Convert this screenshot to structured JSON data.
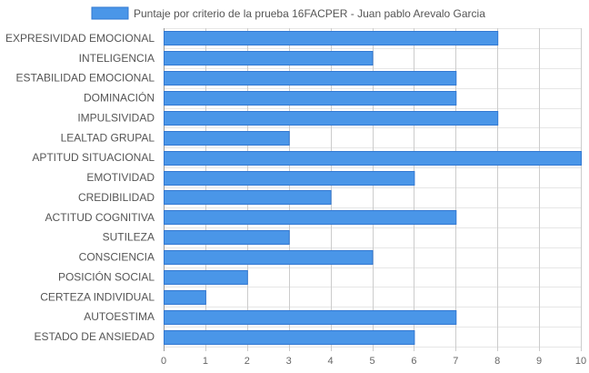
{
  "chart_data": {
    "type": "bar",
    "orientation": "horizontal",
    "title": "",
    "xlabel": "",
    "ylabel": "",
    "xlim": [
      0,
      10
    ],
    "grid": true,
    "legend_position": "top",
    "categories": [
      "EXPRESIVIDAD EMOCIONAL",
      "INTELIGENCIA",
      "ESTABILIDAD EMOCIONAL",
      "DOMINACIÓN",
      "IMPULSIVIDAD",
      "LEALTAD GRUPAL",
      "APTITUD SITUACIONAL",
      "EMOTIVIDAD",
      "CREDIBILIDAD",
      "ACTITUD COGNITIVA",
      "SUTILEZA",
      "CONSCIENCIA",
      "POSICIÓN SOCIAL",
      "CERTEZA INDIVIDUAL",
      "AUTOESTIMA",
      "ESTADO DE ANSIEDAD"
    ],
    "x_ticks": [
      "0",
      "1",
      "2",
      "3",
      "4",
      "5",
      "6",
      "7",
      "8",
      "9",
      "10"
    ],
    "series": [
      {
        "name": "Puntaje por criterio de la prueba 16FACPER - Juan pablo Arevalo Garcia",
        "color": "#4a96e8",
        "border_color": "#3278d2",
        "values": [
          8,
          5,
          7,
          7,
          8,
          3,
          10,
          6,
          4,
          7,
          3,
          5,
          2,
          1,
          7,
          6
        ]
      }
    ]
  }
}
